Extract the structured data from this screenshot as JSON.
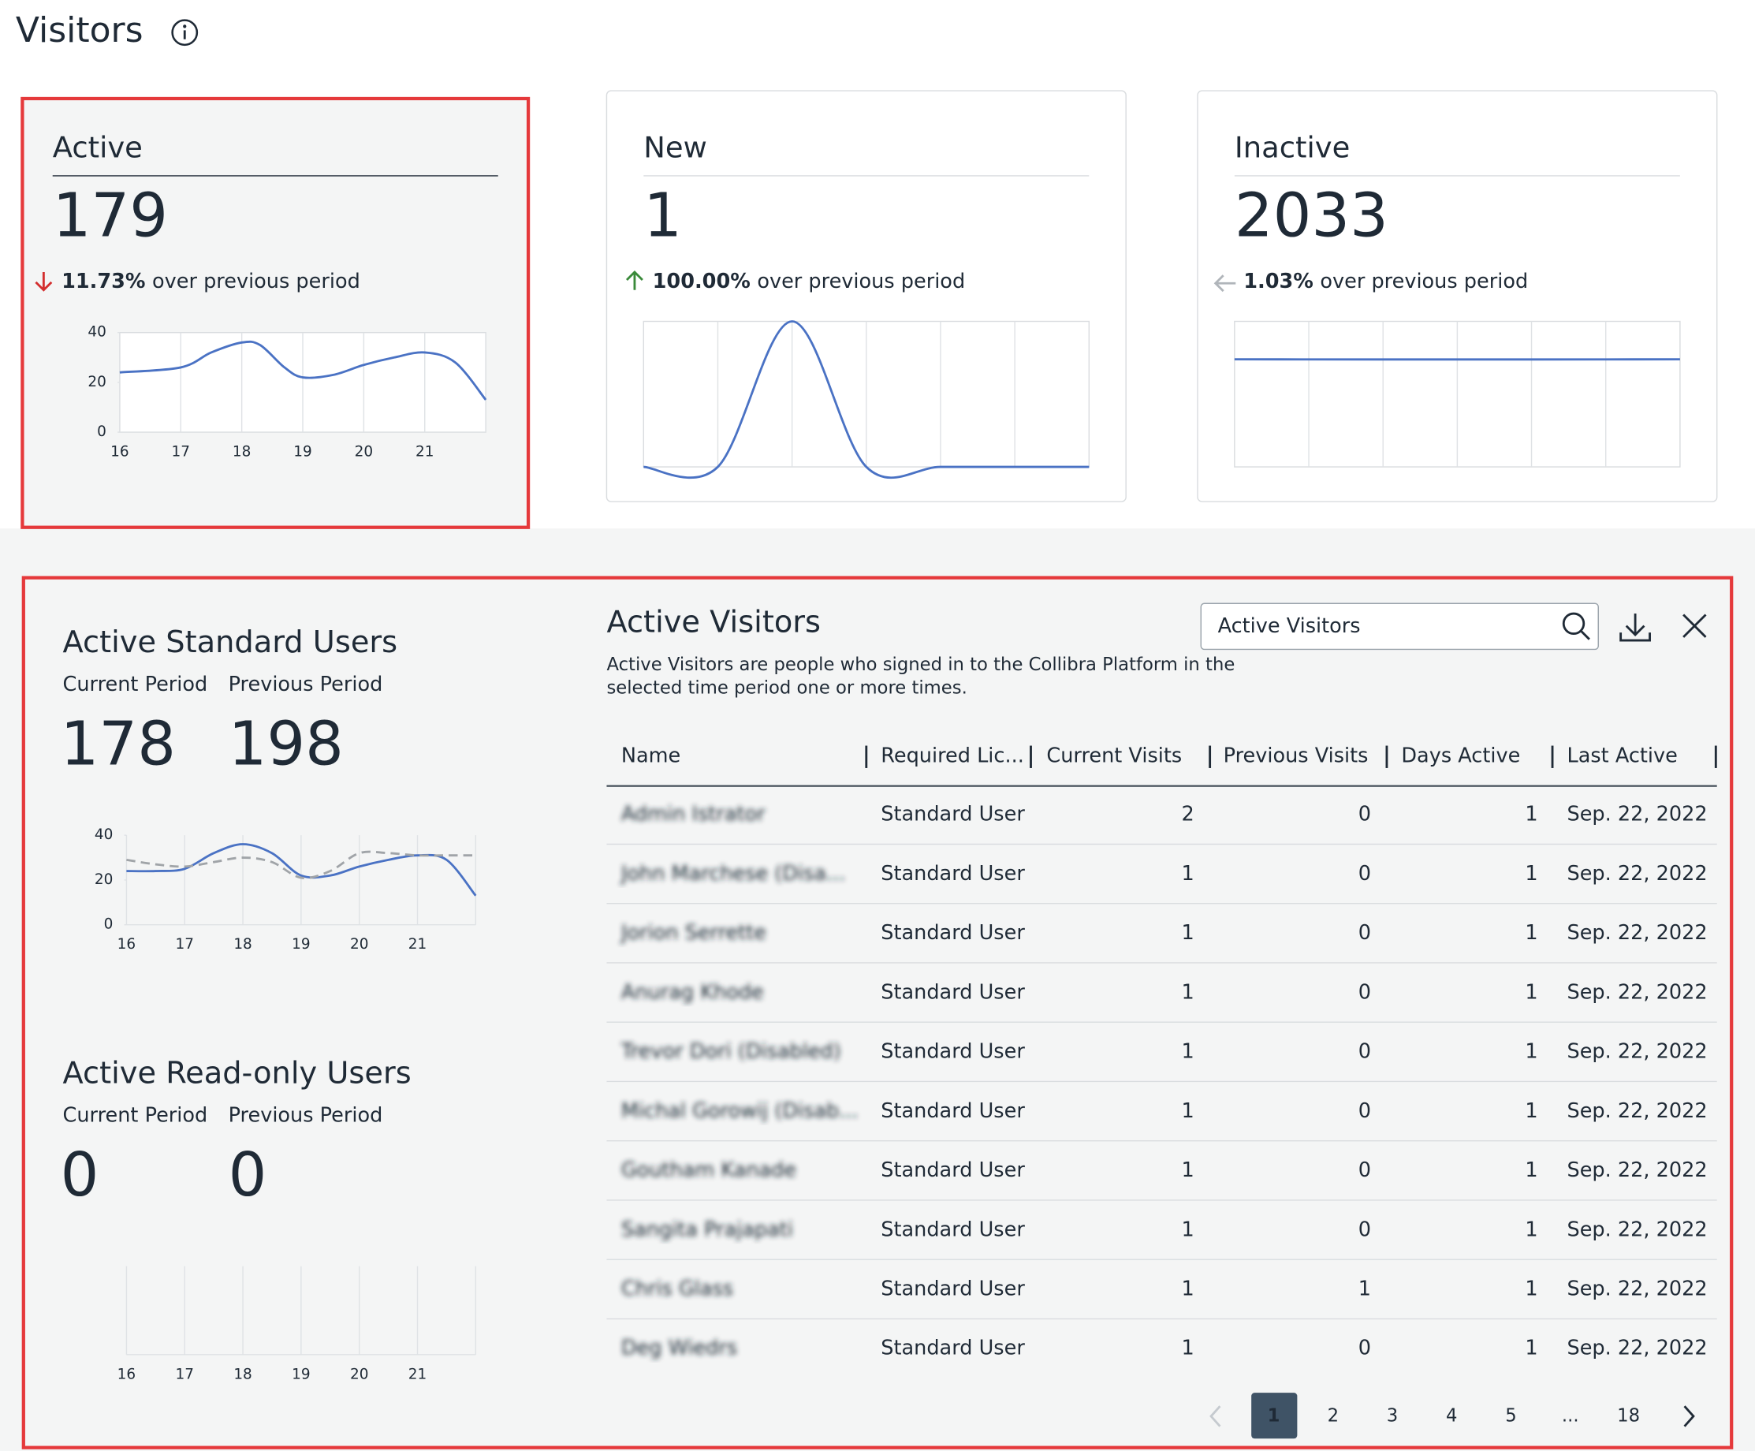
{
  "header": {
    "title": "Visitors"
  },
  "cards": [
    {
      "label": "Active",
      "value": 179,
      "change": "11.73%",
      "change_text": "over previous period",
      "trend": "down",
      "selected": true,
      "chart": {
        "type": "line",
        "x": [
          16,
          17,
          17.5,
          18,
          18.3,
          18.7,
          19,
          19.5,
          20,
          20.5,
          21,
          21.5,
          22
        ],
        "xlim": [
          16,
          22
        ],
        "xticks": [
          16,
          17,
          18,
          19,
          20,
          21
        ],
        "ylim": [
          0,
          40
        ],
        "yticks": [
          0,
          20,
          40
        ],
        "series": [
          {
            "color": "#4a72c4",
            "values": [
              24,
              26,
              32,
              36,
              35,
              26,
              22,
              23,
              27,
              30,
              32,
              28,
              13
            ]
          }
        ]
      }
    },
    {
      "label": "New",
      "value": 1,
      "change": "100.00%",
      "change_text": "over previous period",
      "trend": "up",
      "selected": false,
      "chart": {
        "type": "line",
        "ylim": [
          0,
          1
        ],
        "series": [
          {
            "color": "#4a72c4",
            "values": [
              0,
              0,
              1,
              0,
              0,
              0,
              0
            ]
          }
        ]
      }
    },
    {
      "label": "Inactive",
      "value": 2033,
      "change": "1.03%",
      "change_text": "over previous period",
      "trend": "flat",
      "selected": false,
      "chart": {
        "type": "line",
        "ylim": [
          0,
          2750
        ],
        "series": [
          {
            "color": "#4a72c4",
            "values": [
              2033,
              2031,
              2030,
              2030,
              2030,
              2031,
              2033
            ]
          }
        ]
      }
    }
  ],
  "panels": [
    {
      "title": "Active Standard Users",
      "current_label": "Current Period",
      "previous_label": "Previous Period",
      "current": 178,
      "previous": 198,
      "chart": {
        "type": "line",
        "x": [
          16,
          16.5,
          17,
          17.5,
          18,
          18.5,
          19,
          19.5,
          20,
          20.5,
          21,
          21.5,
          22
        ],
        "xlim": [
          16,
          22
        ],
        "xticks": [
          16,
          17,
          18,
          19,
          20,
          21
        ],
        "ylim": [
          0,
          40
        ],
        "yticks": [
          0,
          20,
          40
        ],
        "series": [
          {
            "color": "#4a72c4",
            "dashed": false,
            "values": [
              24,
              24,
              25,
              32,
              36,
              32,
              22,
              22,
              26,
              29,
              31,
              29,
              13
            ]
          },
          {
            "color": "#a0a4a8",
            "dashed": true,
            "values": [
              29,
              27,
              26,
              28,
              30,
              28,
              21,
              24,
              32,
              32,
              31,
              31,
              31
            ]
          }
        ]
      }
    },
    {
      "title": "Active Read-only Users",
      "current_label": "Current Period",
      "previous_label": "Previous Period",
      "current": 0,
      "previous": 0,
      "chart": {
        "type": "line",
        "xlim": [
          16,
          22
        ],
        "xticks": [
          16,
          17,
          18,
          19,
          20,
          21
        ],
        "series": []
      }
    }
  ],
  "table": {
    "title": "Active Visitors",
    "description": [
      "Active Visitors are people who signed in to the Collibra Platform in the",
      "selected time period one or more times."
    ],
    "search_placeholder": "Active Visitors",
    "columns": [
      "Name",
      "Required Lic...",
      "Current Visits",
      "Previous Visits",
      "Days Active",
      "Last Active"
    ],
    "rows": [
      [
        "Admin Istrator",
        "Standard User",
        2,
        0,
        1,
        "Sep. 22, 2022"
      ],
      [
        "John Marchese (Disa...",
        "Standard User",
        1,
        0,
        1,
        "Sep. 22, 2022"
      ],
      [
        "Jorion Serrette",
        "Standard User",
        1,
        0,
        1,
        "Sep. 22, 2022"
      ],
      [
        "Anurag Khode",
        "Standard User",
        1,
        0,
        1,
        "Sep. 22, 2022"
      ],
      [
        "Trevor Dori (Disabled)",
        "Standard User",
        1,
        0,
        1,
        "Sep. 22, 2022"
      ],
      [
        "Michal Gorowij (Disab...",
        "Standard User",
        1,
        0,
        1,
        "Sep. 22, 2022"
      ],
      [
        "Goutham Kanade",
        "Standard User",
        1,
        0,
        1,
        "Sep. 22, 2022"
      ],
      [
        "Sangita Prajapati",
        "Standard User",
        1,
        0,
        1,
        "Sep. 22, 2022"
      ],
      [
        "Chris Glass",
        "Standard User",
        1,
        1,
        1,
        "Sep. 22, 2022"
      ],
      [
        "Deg Wiedrs",
        "Standard User",
        1,
        0,
        1,
        "Sep. 22, 2022"
      ]
    ]
  },
  "pagination": {
    "pages": [
      "1",
      "2",
      "3",
      "4",
      "5",
      "...",
      "18"
    ],
    "current": "1"
  }
}
